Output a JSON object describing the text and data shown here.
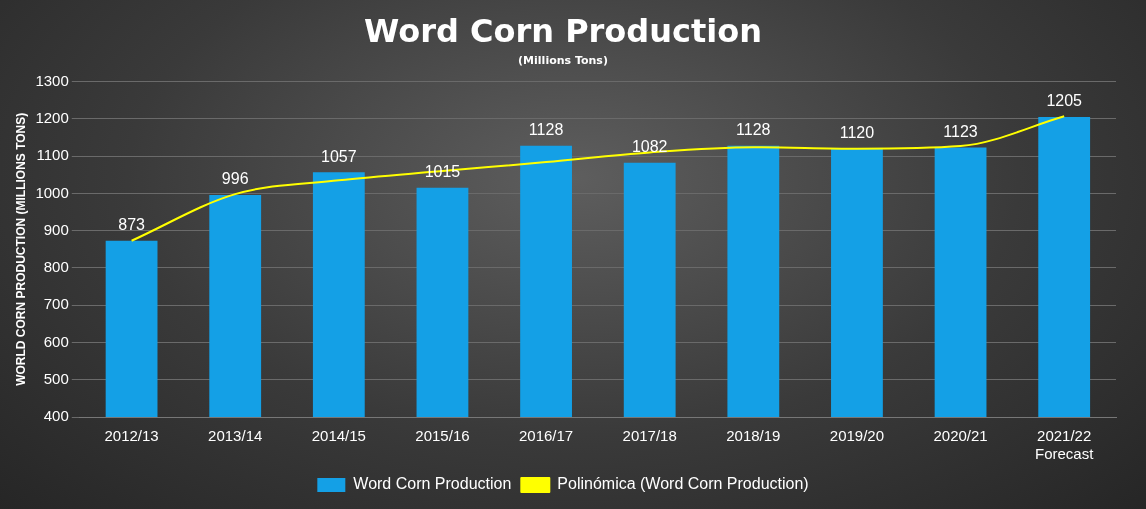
{
  "chart_data": {
    "type": "bar",
    "title": "Word Corn Production",
    "subtitle": "(Millions Tons)",
    "ylabel": "WORLD CORN PRODUCTION (MILLIONS TONS)",
    "categories": [
      "2012/13",
      "2013/14",
      "2014/15",
      "2015/16",
      "2016/17",
      "2017/18",
      "2018/19",
      "2019/20",
      "2020/21",
      "2021/22\nForecast"
    ],
    "series": [
      {
        "name": "Word Corn Production",
        "color": "#14a0e6",
        "values": [
          873,
          996,
          1057,
          1015,
          1128,
          1082,
          1128,
          1120,
          1123,
          1205
        ],
        "value_labels": [
          "873",
          "996",
          "1057",
          "1015",
          "1128",
          "1082",
          "1128",
          "1120",
          "1123",
          "1205"
        ]
      },
      {
        "name": "Polinómica (Word Corn Production)",
        "type": "line",
        "color": "#ffff00",
        "values": [
          873,
          998,
          1035,
          1060,
          1084,
          1110,
          1124,
          1120,
          1127,
          1207
        ],
        "marker": "none"
      }
    ],
    "ylim": [
      400,
      1300
    ],
    "yticks": [
      400,
      500,
      600,
      700,
      800,
      900,
      1000,
      1100,
      1200,
      1300
    ],
    "grid": "y",
    "legend": "bottom"
  }
}
